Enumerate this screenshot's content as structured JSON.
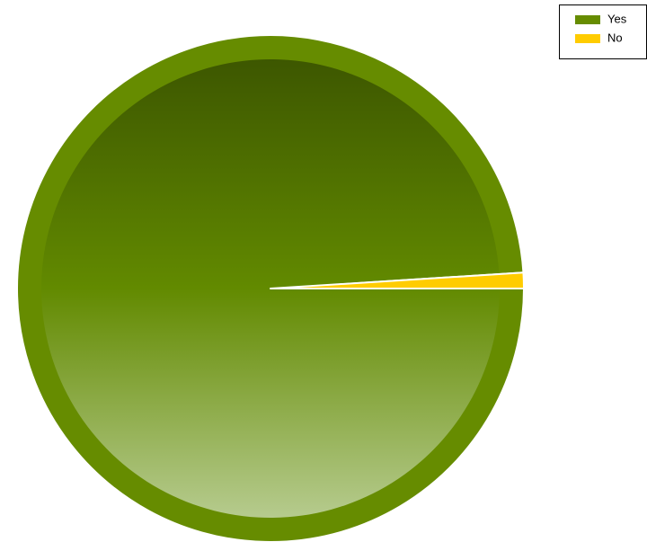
{
  "chart_data": {
    "type": "pie",
    "categories": [
      "Yes",
      "No"
    ],
    "values": [
      99,
      1
    ],
    "colors": [
      "#668c00",
      "#ffcc00"
    ],
    "legend": "top-right"
  }
}
